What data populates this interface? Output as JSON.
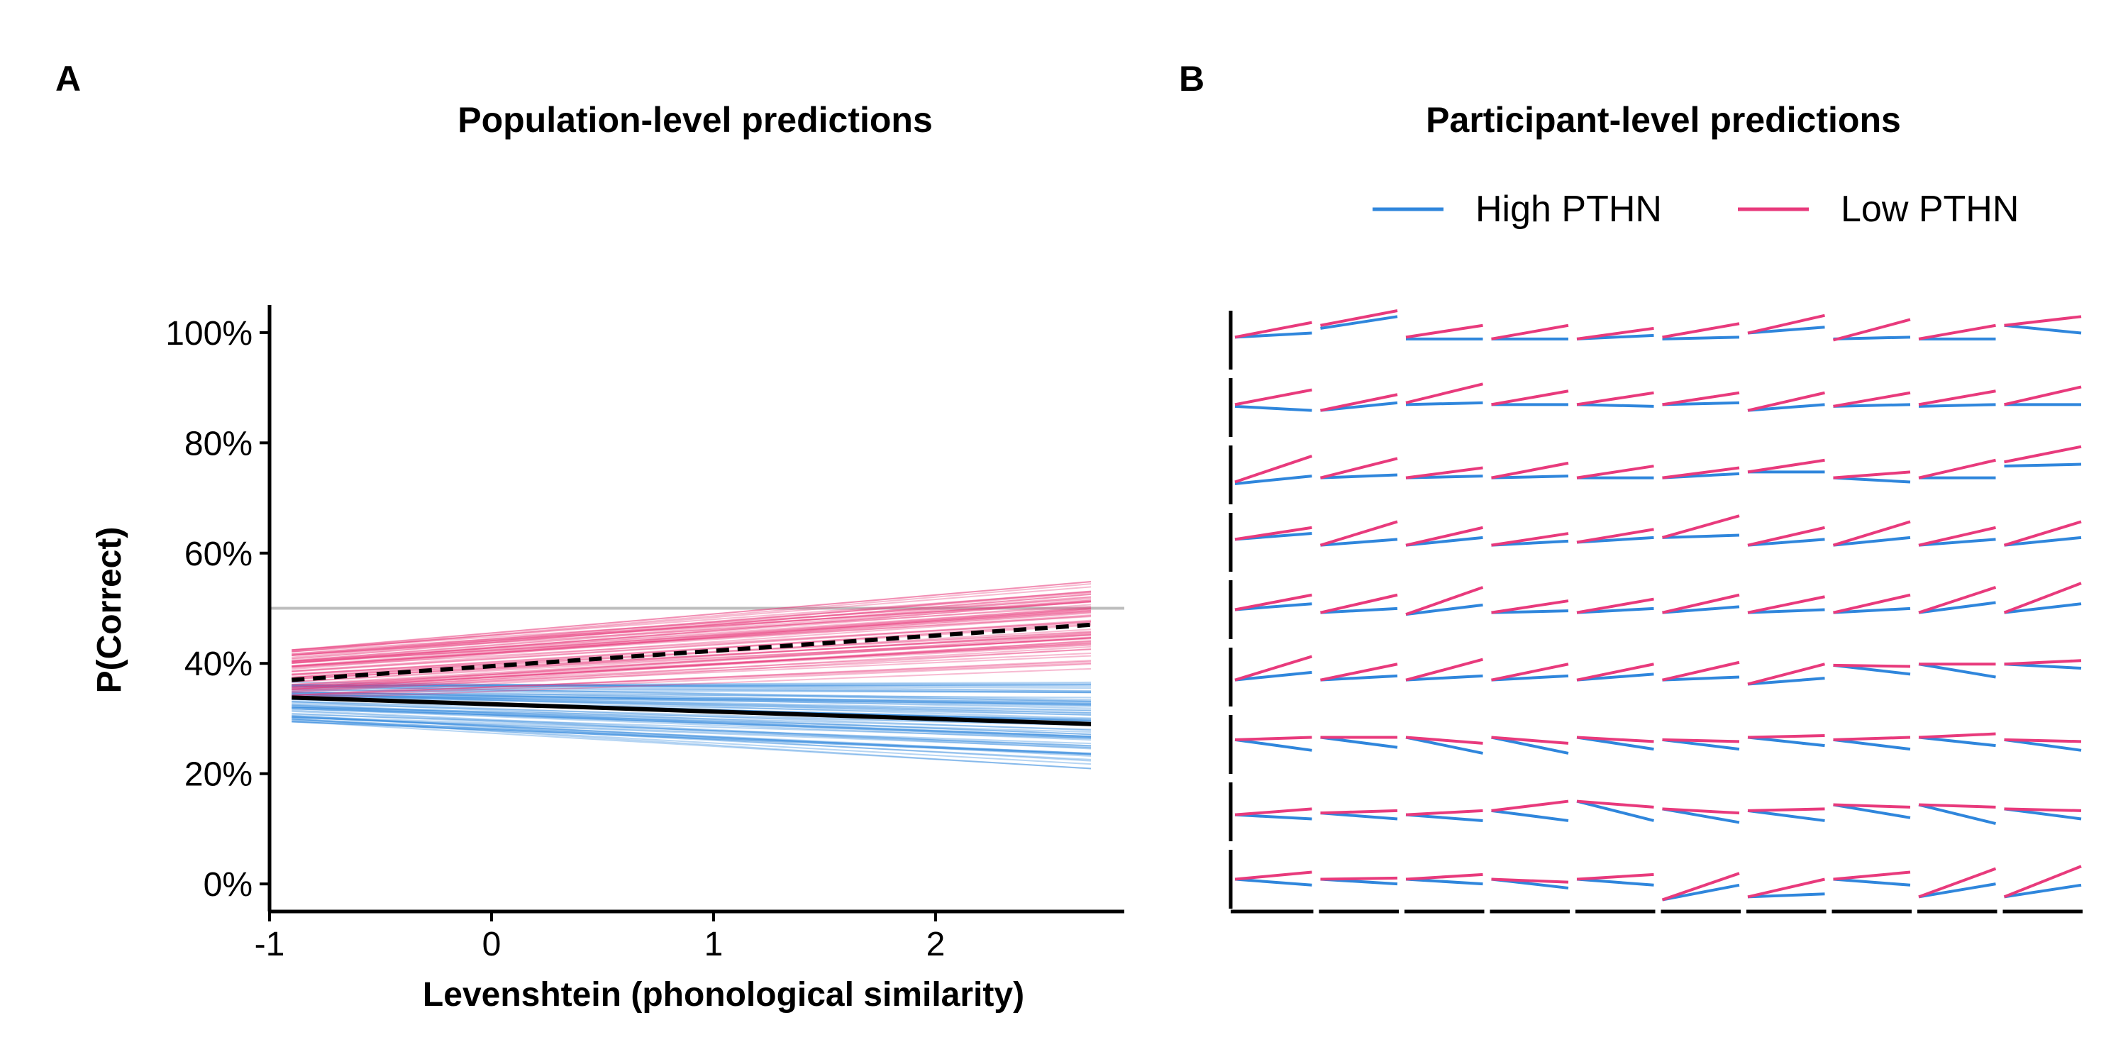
{
  "panels": [
    {
      "letter": "A",
      "title": "Population-level predictions"
    },
    {
      "letter": "B",
      "title": "Participant-level predictions"
    }
  ],
  "legend": {
    "position": "top-right",
    "items": [
      {
        "label": "High PTHN",
        "color": "#2f86dc"
      },
      {
        "label": "Low PTHN",
        "color": "#e83a7c"
      }
    ]
  },
  "chart_data": [
    {
      "type": "line",
      "title": "Population-level predictions",
      "xlabel": "Levenshtein (phonological similarity)",
      "ylabel": "P(Correct)",
      "xlim": [
        -1,
        2.85
      ],
      "ylim": [
        -0.05,
        1.05
      ],
      "xticks": [
        -1,
        0,
        1,
        2
      ],
      "xtick_labels": [
        "-1",
        "0",
        "1",
        "2"
      ],
      "yticks": [
        0,
        0.2,
        0.4,
        0.6,
        0.8,
        1.0
      ],
      "ytick_labels": [
        "0%",
        "20%",
        "40%",
        "60%",
        "80%",
        "100%"
      ],
      "reference_line": {
        "y": 0.5,
        "color": "#bdbdbd"
      },
      "x_range": [
        -0.9,
        2.7
      ],
      "series": [
        {
          "name": "Low PTHN",
          "style": "dashed",
          "color": "#000000",
          "x": [
            -0.9,
            2.7
          ],
          "y": [
            0.37,
            0.47
          ]
        },
        {
          "name": "High PTHN",
          "style": "solid",
          "color": "#000000",
          "x": [
            -0.9,
            2.7
          ],
          "y": [
            0.338,
            0.29
          ]
        }
      ],
      "posterior_draws": [
        {
          "group": "Low PTHN",
          "color": "#e83a7c",
          "count": 70,
          "y_start_range": [
            0.33,
            0.43
          ],
          "y_end_range": [
            0.4,
            0.54
          ]
        },
        {
          "group": "High PTHN",
          "color": "#2f86dc",
          "count": 70,
          "y_start_range": [
            0.29,
            0.37
          ],
          "y_end_range": [
            0.21,
            0.37
          ]
        }
      ]
    },
    {
      "type": "line",
      "title": "Participant-level predictions",
      "facet_grid": {
        "rows": 9,
        "cols": 10
      },
      "series_names": [
        "High PTHN",
        "Low PTHN"
      ],
      "participants": [
        [
          [
            0.55,
            0.62
          ],
          [
            0.55,
            0.8
          ]
        ],
        [
          [
            0.7,
            0.9
          ],
          [
            0.75,
            1.0
          ]
        ],
        [
          [
            0.52,
            0.52
          ],
          [
            0.55,
            0.75
          ]
        ],
        [
          [
            0.52,
            0.52
          ],
          [
            0.52,
            0.75
          ]
        ],
        [
          [
            0.52,
            0.58
          ],
          [
            0.52,
            0.7
          ]
        ],
        [
          [
            0.52,
            0.55
          ],
          [
            0.55,
            0.78
          ]
        ],
        [
          [
            0.62,
            0.72
          ],
          [
            0.62,
            0.92
          ]
        ],
        [
          [
            0.52,
            0.55
          ],
          [
            0.5,
            0.85
          ]
        ],
        [
          [
            0.52,
            0.52
          ],
          [
            0.52,
            0.75
          ]
        ],
        [
          [
            0.75,
            0.62
          ],
          [
            0.75,
            0.9
          ]
        ],
        [
          [
            0.52,
            0.45
          ],
          [
            0.55,
            0.8
          ]
        ],
        [
          [
            0.45,
            0.58
          ],
          [
            0.45,
            0.72
          ]
        ],
        [
          [
            0.55,
            0.58
          ],
          [
            0.58,
            0.9
          ]
        ],
        [
          [
            0.55,
            0.55
          ],
          [
            0.55,
            0.78
          ]
        ],
        [
          [
            0.55,
            0.52
          ],
          [
            0.55,
            0.75
          ]
        ],
        [
          [
            0.55,
            0.58
          ],
          [
            0.55,
            0.75
          ]
        ],
        [
          [
            0.45,
            0.55
          ],
          [
            0.45,
            0.75
          ]
        ],
        [
          [
            0.52,
            0.55
          ],
          [
            0.52,
            0.75
          ]
        ],
        [
          [
            0.52,
            0.55
          ],
          [
            0.55,
            0.78
          ]
        ],
        [
          [
            0.55,
            0.55
          ],
          [
            0.55,
            0.85
          ]
        ],
        [
          [
            0.35,
            0.48
          ],
          [
            0.38,
            0.82
          ]
        ],
        [
          [
            0.45,
            0.5
          ],
          [
            0.45,
            0.78
          ]
        ],
        [
          [
            0.45,
            0.48
          ],
          [
            0.45,
            0.62
          ]
        ],
        [
          [
            0.45,
            0.48
          ],
          [
            0.45,
            0.7
          ]
        ],
        [
          [
            0.45,
            0.45
          ],
          [
            0.45,
            0.65
          ]
        ],
        [
          [
            0.45,
            0.52
          ],
          [
            0.45,
            0.62
          ]
        ],
        [
          [
            0.55,
            0.55
          ],
          [
            0.55,
            0.75
          ]
        ],
        [
          [
            0.45,
            0.38
          ],
          [
            0.45,
            0.55
          ]
        ],
        [
          [
            0.45,
            0.45
          ],
          [
            0.45,
            0.75
          ]
        ],
        [
          [
            0.65,
            0.68
          ],
          [
            0.72,
            0.98
          ]
        ],
        [
          [
            0.55,
            0.65
          ],
          [
            0.55,
            0.75
          ]
        ],
        [
          [
            0.45,
            0.55
          ],
          [
            0.45,
            0.85
          ]
        ],
        [
          [
            0.45,
            0.58
          ],
          [
            0.45,
            0.75
          ]
        ],
        [
          [
            0.45,
            0.52
          ],
          [
            0.45,
            0.65
          ]
        ],
        [
          [
            0.5,
            0.58
          ],
          [
            0.5,
            0.72
          ]
        ],
        [
          [
            0.58,
            0.62
          ],
          [
            0.58,
            0.95
          ]
        ],
        [
          [
            0.45,
            0.55
          ],
          [
            0.45,
            0.75
          ]
        ],
        [
          [
            0.45,
            0.58
          ],
          [
            0.45,
            0.85
          ]
        ],
        [
          [
            0.45,
            0.55
          ],
          [
            0.45,
            0.75
          ]
        ],
        [
          [
            0.45,
            0.58
          ],
          [
            0.45,
            0.85
          ]
        ],
        [
          [
            0.5,
            0.6
          ],
          [
            0.5,
            0.75
          ]
        ],
        [
          [
            0.45,
            0.52
          ],
          [
            0.45,
            0.75
          ]
        ],
        [
          [
            0.42,
            0.58
          ],
          [
            0.42,
            0.88
          ]
        ],
        [
          [
            0.45,
            0.48
          ],
          [
            0.45,
            0.65
          ]
        ],
        [
          [
            0.45,
            0.52
          ],
          [
            0.45,
            0.68
          ]
        ],
        [
          [
            0.45,
            0.55
          ],
          [
            0.45,
            0.75
          ]
        ],
        [
          [
            0.45,
            0.5
          ],
          [
            0.45,
            0.72
          ]
        ],
        [
          [
            0.45,
            0.52
          ],
          [
            0.45,
            0.75
          ]
        ],
        [
          [
            0.45,
            0.62
          ],
          [
            0.45,
            0.88
          ]
        ],
        [
          [
            0.45,
            0.6
          ],
          [
            0.45,
            0.95
          ]
        ],
        [
          [
            0.45,
            0.58
          ],
          [
            0.45,
            0.85
          ]
        ],
        [
          [
            0.45,
            0.52
          ],
          [
            0.45,
            0.72
          ]
        ],
        [
          [
            0.45,
            0.52
          ],
          [
            0.45,
            0.8
          ]
        ],
        [
          [
            0.45,
            0.52
          ],
          [
            0.45,
            0.72
          ]
        ],
        [
          [
            0.45,
            0.55
          ],
          [
            0.45,
            0.72
          ]
        ],
        [
          [
            0.45,
            0.5
          ],
          [
            0.45,
            0.75
          ]
        ],
        [
          [
            0.38,
            0.48
          ],
          [
            0.38,
            0.72
          ]
        ],
        [
          [
            0.7,
            0.55
          ],
          [
            0.7,
            0.68
          ]
        ],
        [
          [
            0.72,
            0.5
          ],
          [
            0.72,
            0.72
          ]
        ],
        [
          [
            0.72,
            0.65
          ],
          [
            0.72,
            0.78
          ]
        ],
        [
          [
            0.58,
            0.4
          ],
          [
            0.58,
            0.62
          ]
        ],
        [
          [
            0.62,
            0.45
          ],
          [
            0.62,
            0.62
          ]
        ],
        [
          [
            0.62,
            0.35
          ],
          [
            0.62,
            0.52
          ]
        ],
        [
          [
            0.62,
            0.35
          ],
          [
            0.62,
            0.52
          ]
        ],
        [
          [
            0.62,
            0.42
          ],
          [
            0.62,
            0.55
          ]
        ],
        [
          [
            0.58,
            0.42
          ],
          [
            0.58,
            0.55
          ]
        ],
        [
          [
            0.62,
            0.48
          ],
          [
            0.62,
            0.65
          ]
        ],
        [
          [
            0.58,
            0.42
          ],
          [
            0.58,
            0.62
          ]
        ],
        [
          [
            0.62,
            0.48
          ],
          [
            0.62,
            0.68
          ]
        ],
        [
          [
            0.58,
            0.4
          ],
          [
            0.58,
            0.55
          ]
        ],
        [
          [
            0.45,
            0.38
          ],
          [
            0.45,
            0.55
          ]
        ],
        [
          [
            0.48,
            0.38
          ],
          [
            0.48,
            0.52
          ]
        ],
        [
          [
            0.45,
            0.35
          ],
          [
            0.45,
            0.52
          ]
        ],
        [
          [
            0.52,
            0.35
          ],
          [
            0.52,
            0.68
          ]
        ],
        [
          [
            0.68,
            0.35
          ],
          [
            0.68,
            0.58
          ]
        ],
        [
          [
            0.55,
            0.32
          ],
          [
            0.55,
            0.48
          ]
        ],
        [
          [
            0.52,
            0.35
          ],
          [
            0.52,
            0.55
          ]
        ],
        [
          [
            0.62,
            0.4
          ],
          [
            0.62,
            0.58
          ]
        ],
        [
          [
            0.62,
            0.3
          ],
          [
            0.62,
            0.58
          ]
        ],
        [
          [
            0.55,
            0.38
          ],
          [
            0.55,
            0.52
          ]
        ],
        [
          [
            0.5,
            0.4
          ],
          [
            0.5,
            0.62
          ]
        ],
        [
          [
            0.5,
            0.42
          ],
          [
            0.5,
            0.52
          ]
        ],
        [
          [
            0.5,
            0.42
          ],
          [
            0.5,
            0.58
          ]
        ],
        [
          [
            0.5,
            0.35
          ],
          [
            0.5,
            0.45
          ]
        ],
        [
          [
            0.5,
            0.4
          ],
          [
            0.5,
            0.58
          ]
        ],
        [
          [
            0.15,
            0.4
          ],
          [
            0.15,
            0.6
          ]
        ],
        [
          [
            0.2,
            0.25
          ],
          [
            0.2,
            0.5
          ]
        ],
        [
          [
            0.5,
            0.4
          ],
          [
            0.5,
            0.62
          ]
        ],
        [
          [
            0.2,
            0.42
          ],
          [
            0.2,
            0.68
          ]
        ],
        [
          [
            0.2,
            0.4
          ],
          [
            0.2,
            0.72
          ]
        ]
      ]
    }
  ]
}
